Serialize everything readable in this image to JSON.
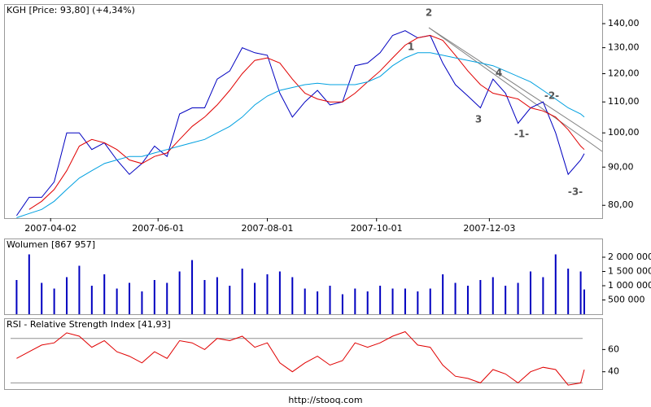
{
  "footer": "http://stooq.com",
  "chart_data": [
    {
      "type": "line",
      "title": "KGH [Price: 93,80] (+4,34%)",
      "yscale": "log",
      "x": [
        "2007-03-14",
        "2007-03-21",
        "2007-03-28",
        "2007-04-04",
        "2007-04-11",
        "2007-04-18",
        "2007-04-25",
        "2007-05-02",
        "2007-05-09",
        "2007-05-16",
        "2007-05-23",
        "2007-05-30",
        "2007-06-06",
        "2007-06-13",
        "2007-06-20",
        "2007-06-27",
        "2007-07-04",
        "2007-07-11",
        "2007-07-18",
        "2007-07-25",
        "2007-08-01",
        "2007-08-08",
        "2007-08-15",
        "2007-08-22",
        "2007-08-29",
        "2007-09-05",
        "2007-09-12",
        "2007-09-19",
        "2007-09-26",
        "2007-10-03",
        "2007-10-10",
        "2007-10-17",
        "2007-10-24",
        "2007-10-31",
        "2007-11-07",
        "2007-11-14",
        "2007-11-21",
        "2007-11-28",
        "2007-12-05",
        "2007-12-12",
        "2007-12-19",
        "2007-12-26",
        "2008-01-02",
        "2008-01-09",
        "2008-01-16",
        "2008-01-23",
        "2008-01-25"
      ],
      "series": [
        {
          "color": "#0000c0",
          "values": [
            77.5,
            82,
            82,
            86,
            100,
            100,
            95,
            97,
            92,
            88,
            91,
            96,
            93,
            106,
            108,
            108,
            118,
            121,
            130,
            128,
            127,
            113,
            105,
            110,
            114,
            109,
            110,
            123,
            124,
            128,
            135,
            137,
            134,
            135,
            124,
            116,
            112,
            108,
            118,
            113,
            103,
            108,
            110,
            100,
            88,
            92,
            93.8
          ]
        },
        {
          "color": "#e00000",
          "values": [
            null,
            79,
            81,
            84,
            89,
            96,
            98,
            97,
            95,
            92,
            91,
            93,
            94,
            98,
            102,
            105,
            109,
            114,
            120,
            125,
            126,
            124,
            118,
            113,
            111,
            110,
            110,
            113,
            117,
            121,
            126,
            131,
            134,
            135,
            133,
            127,
            121,
            116,
            113,
            112,
            111,
            108,
            107,
            105,
            101,
            96,
            95
          ]
        },
        {
          "color": "#00a0e0",
          "values": [
            77,
            78,
            79,
            81,
            84,
            87,
            89,
            91,
            92,
            93,
            93,
            94,
            95,
            96,
            97,
            98,
            100,
            102,
            105,
            109,
            112,
            114,
            115,
            116,
            116.5,
            116,
            116,
            116,
            117,
            119,
            123,
            126,
            128,
            128,
            127,
            126,
            125,
            124,
            123,
            121,
            119,
            117,
            114,
            111,
            108,
            106,
            105
          ]
        }
      ],
      "xlim": [
        "2007-03-07",
        "2008-02-04"
      ],
      "xticks": [
        "2007-04-02",
        "2007-06-01",
        "2007-08-01",
        "2007-10-01",
        "2007-12-03"
      ],
      "ylim": [
        76.9,
        148.7
      ],
      "yticks": [
        {
          "value": 80,
          "label": "80,00"
        },
        {
          "value": 90,
          "label": "90,00"
        },
        {
          "value": 100,
          "label": "100,00"
        },
        {
          "value": 110,
          "label": "110,00"
        },
        {
          "value": 120,
          "label": "120,00"
        },
        {
          "value": 130,
          "label": "130,00"
        },
        {
          "value": 140,
          "label": "140,00"
        }
      ],
      "annotations": [
        "2",
        "1",
        "3",
        "4",
        "-1-",
        "-2-",
        "-3-"
      ]
    },
    {
      "type": "bar",
      "title": "Wolumen [867 957]",
      "color": "#0000c0",
      "x": [
        "2007-03-14",
        "2007-03-21",
        "2007-03-28",
        "2007-04-04",
        "2007-04-11",
        "2007-04-18",
        "2007-04-25",
        "2007-05-02",
        "2007-05-09",
        "2007-05-16",
        "2007-05-23",
        "2007-05-30",
        "2007-06-06",
        "2007-06-13",
        "2007-06-20",
        "2007-06-27",
        "2007-07-04",
        "2007-07-11",
        "2007-07-18",
        "2007-07-25",
        "2007-08-01",
        "2007-08-08",
        "2007-08-15",
        "2007-08-22",
        "2007-08-29",
        "2007-09-05",
        "2007-09-12",
        "2007-09-19",
        "2007-09-26",
        "2007-10-03",
        "2007-10-10",
        "2007-10-17",
        "2007-10-24",
        "2007-10-31",
        "2007-11-07",
        "2007-11-14",
        "2007-11-21",
        "2007-11-28",
        "2007-12-05",
        "2007-12-12",
        "2007-12-19",
        "2007-12-26",
        "2008-01-02",
        "2008-01-09",
        "2008-01-16",
        "2008-01-23",
        "2008-01-25"
      ],
      "values": [
        1200000,
        2100000,
        1100000,
        900000,
        1300000,
        1700000,
        1000000,
        1400000,
        900000,
        1100000,
        800000,
        1200000,
        1100000,
        1500000,
        1900000,
        1200000,
        1300000,
        1000000,
        1600000,
        1100000,
        1400000,
        1500000,
        1300000,
        900000,
        800000,
        1000000,
        700000,
        900000,
        800000,
        1000000,
        900000,
        900000,
        800000,
        900000,
        1400000,
        1100000,
        1000000,
        1200000,
        1300000,
        1000000,
        1100000,
        1500000,
        1300000,
        2100000,
        1600000,
        1500000,
        867957
      ],
      "xlim": [
        "2007-03-07",
        "2008-02-04"
      ],
      "ylim": [
        0,
        2657000
      ],
      "yticks": [
        {
          "value": 500000,
          "label": "500 000"
        },
        {
          "value": 1000000,
          "label": "1 000 000"
        },
        {
          "value": 1500000,
          "label": "1 500 000"
        },
        {
          "value": 2000000,
          "label": "2 000 000"
        }
      ]
    },
    {
      "type": "line",
      "title": "RSI - Relative Strength Index [41,93]",
      "x": [
        "2007-03-14",
        "2007-03-21",
        "2007-03-28",
        "2007-04-04",
        "2007-04-11",
        "2007-04-18",
        "2007-04-25",
        "2007-05-02",
        "2007-05-09",
        "2007-05-16",
        "2007-05-23",
        "2007-05-30",
        "2007-06-06",
        "2007-06-13",
        "2007-06-20",
        "2007-06-27",
        "2007-07-04",
        "2007-07-11",
        "2007-07-18",
        "2007-07-25",
        "2007-08-01",
        "2007-08-08",
        "2007-08-15",
        "2007-08-22",
        "2007-08-29",
        "2007-09-05",
        "2007-09-12",
        "2007-09-19",
        "2007-09-26",
        "2007-10-03",
        "2007-10-10",
        "2007-10-17",
        "2007-10-24",
        "2007-10-31",
        "2007-11-07",
        "2007-11-14",
        "2007-11-21",
        "2007-11-28",
        "2007-12-05",
        "2007-12-12",
        "2007-12-19",
        "2007-12-26",
        "2008-01-02",
        "2008-01-09",
        "2008-01-16",
        "2008-01-23",
        "2008-01-25"
      ],
      "series": [
        {
          "color": "#e00000",
          "values": [
            52,
            58,
            64,
            66,
            75,
            72,
            62,
            68,
            58,
            54,
            48,
            58,
            52,
            68,
            66,
            60,
            70,
            68,
            72,
            62,
            66,
            48,
            40,
            48,
            54,
            46,
            50,
            66,
            62,
            66,
            72,
            76,
            64,
            62,
            46,
            36,
            34,
            30,
            42,
            38,
            30,
            40,
            44,
            42,
            28,
            30,
            41.93
          ]
        }
      ],
      "xlim": [
        "2007-03-07",
        "2008-02-04"
      ],
      "ylim": [
        24.4,
        88.1
      ],
      "yticks": [
        40,
        60
      ],
      "levels": [
        30,
        70
      ]
    }
  ]
}
